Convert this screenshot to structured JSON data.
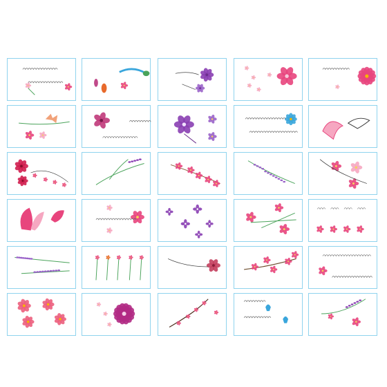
{
  "sheet": {
    "colors": {
      "card_border": "#8fd3ee",
      "pink": "#e8457d",
      "light_pink": "#f6a7c1",
      "purple": "#8a3fb3",
      "lavender": "#9a63c9",
      "green": "#4aa35a",
      "blue": "#3aa6dc"
    },
    "designs": [
      {
        "row": 0,
        "col": 0,
        "kind": "pink-flowers-script"
      },
      {
        "row": 0,
        "col": 1,
        "kind": "goldfish-peacock-feather"
      },
      {
        "row": 0,
        "col": 2,
        "kind": "purple-peonies-lineart"
      },
      {
        "row": 0,
        "col": 3,
        "kind": "pink-blossom-cluster"
      },
      {
        "row": 0,
        "col": 4,
        "kind": "pink-daisy-script"
      },
      {
        "row": 1,
        "col": 0,
        "kind": "butterfly-pink-flowers"
      },
      {
        "row": 1,
        "col": 1,
        "kind": "hibiscus-script"
      },
      {
        "row": 1,
        "col": 2,
        "kind": "purple-lilies"
      },
      {
        "row": 1,
        "col": 3,
        "kind": "blue-flower-script"
      },
      {
        "row": 1,
        "col": 4,
        "kind": "pink-dolphins"
      },
      {
        "row": 2,
        "col": 0,
        "kind": "red-roses-vine"
      },
      {
        "row": 2,
        "col": 1,
        "kind": "green-lavender-sprig"
      },
      {
        "row": 2,
        "col": 2,
        "kind": "pink-blossom-branch"
      },
      {
        "row": 2,
        "col": 3,
        "kind": "lavender-sprig"
      },
      {
        "row": 2,
        "col": 4,
        "kind": "pink-lily-branch"
      },
      {
        "row": 3,
        "col": 0,
        "kind": "pink-lotus-petals"
      },
      {
        "row": 3,
        "col": 1,
        "kind": "pink-lily-script"
      },
      {
        "row": 3,
        "col": 2,
        "kind": "purple-butterfly-flowers"
      },
      {
        "row": 3,
        "col": 3,
        "kind": "pink-orchid-stems"
      },
      {
        "row": 3,
        "col": 4,
        "kind": "pink-flowers-text-row"
      },
      {
        "row": 4,
        "col": 0,
        "kind": "lavender-stalks"
      },
      {
        "row": 4,
        "col": 1,
        "kind": "wildflower-stems"
      },
      {
        "row": 4,
        "col": 2,
        "kind": "pink-rose-stem"
      },
      {
        "row": 4,
        "col": 3,
        "kind": "pink-blossom-branch-2"
      },
      {
        "row": 4,
        "col": 4,
        "kind": "script-with-flowers"
      },
      {
        "row": 5,
        "col": 0,
        "kind": "coral-peonies"
      },
      {
        "row": 5,
        "col": 1,
        "kind": "magenta-chrysanthemum"
      },
      {
        "row": 5,
        "col": 2,
        "kind": "plum-blossom-branch"
      },
      {
        "row": 5,
        "col": 3,
        "kind": "blue-tulip-script"
      },
      {
        "row": 5,
        "col": 4,
        "kind": "pink-purple-spray"
      }
    ]
  }
}
